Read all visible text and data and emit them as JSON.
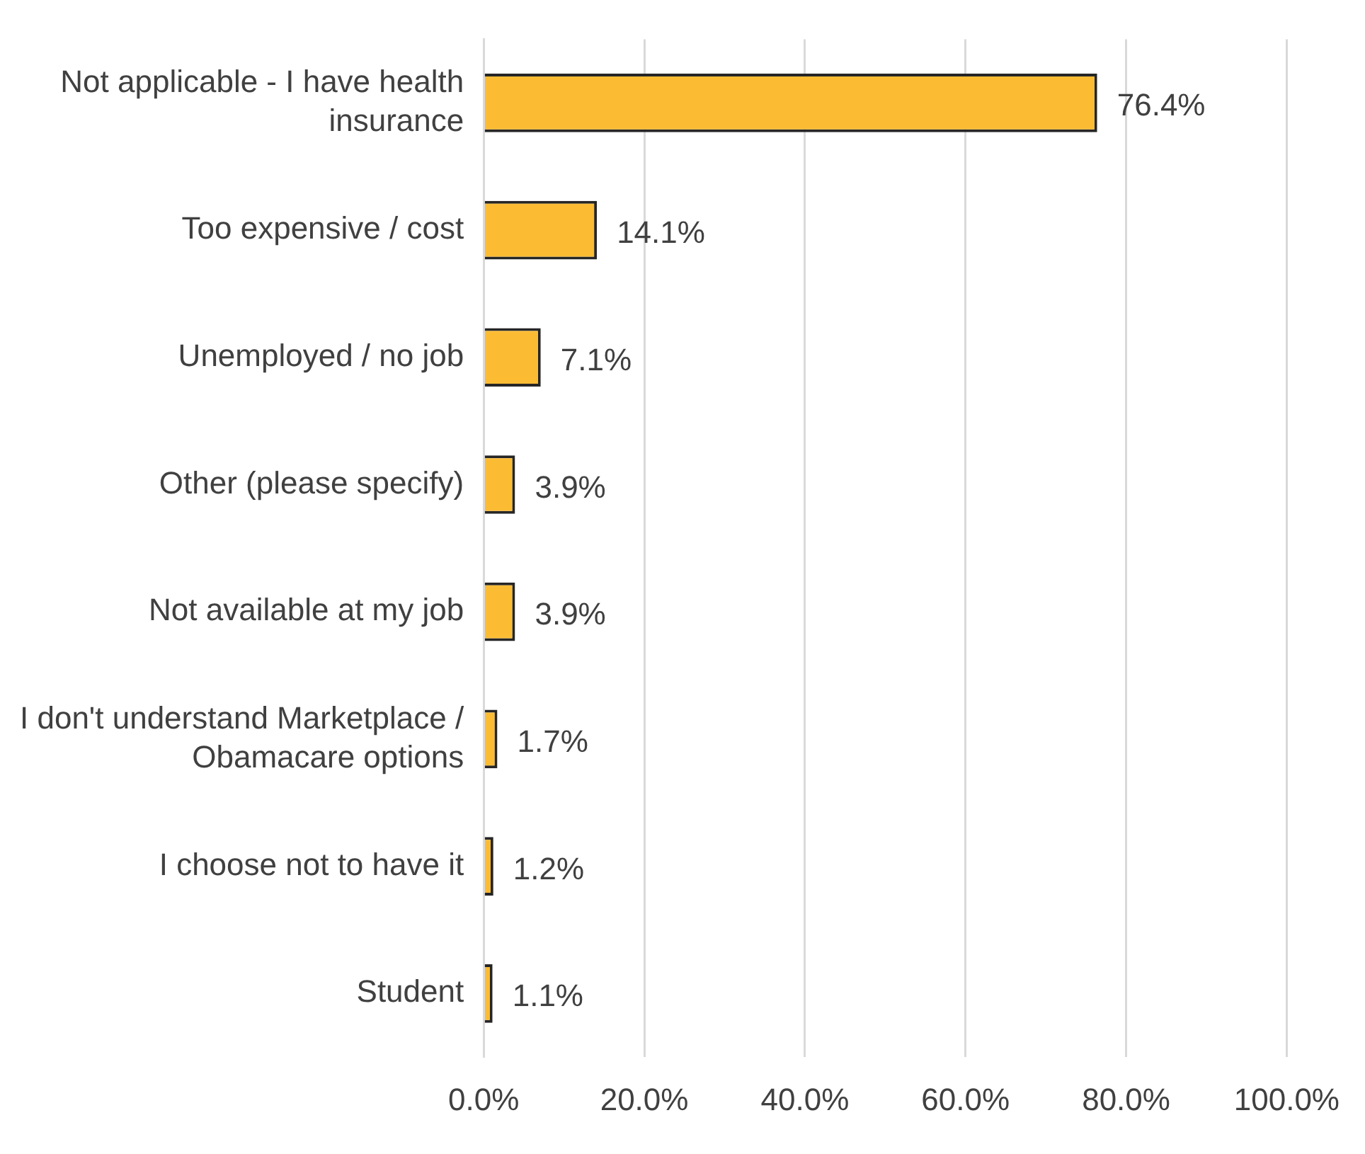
{
  "chart_data": {
    "type": "bar",
    "orientation": "horizontal",
    "categories": [
      "Not applicable - I have health insurance",
      "Too expensive / cost",
      "Unemployed / no job",
      "Other (please specify)",
      "Not available at my job",
      "I don't understand Marketplace / Obamacare options",
      "I choose not to have it",
      "Student"
    ],
    "values": [
      76.4,
      14.1,
      7.1,
      3.9,
      3.9,
      1.7,
      1.2,
      1.1
    ],
    "value_labels": [
      "76.4%",
      "14.1%",
      "7.1%",
      "3.9%",
      "3.9%",
      "1.7%",
      "1.2%",
      "1.1%"
    ],
    "color": "#fbbc34",
    "xlim": [
      0,
      100
    ],
    "xticks": [
      {
        "value": 0,
        "label": "0.0%"
      },
      {
        "value": 20,
        "label": "20.0%"
      },
      {
        "value": 40,
        "label": "40.0%"
      },
      {
        "value": 60,
        "label": "60.0%"
      },
      {
        "value": 80,
        "label": "80.0%"
      },
      {
        "value": 100,
        "label": "100.0%"
      }
    ],
    "grid": "x",
    "legend": false
  }
}
